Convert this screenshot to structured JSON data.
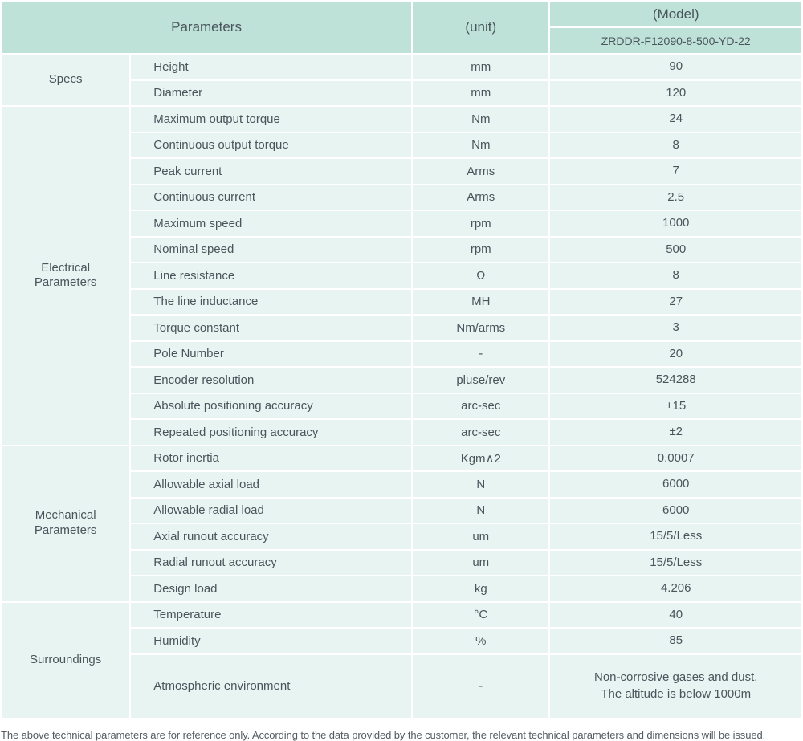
{
  "header": {
    "parameters_label": "Parameters",
    "unit_label": "(unit)",
    "model_label": "(Model)",
    "model_number": "ZRDDR-F12090-8-500-YD-22"
  },
  "groups": [
    {
      "name": "Specs",
      "rows": [
        {
          "label": "Height",
          "unit": "mm",
          "value": "90"
        },
        {
          "label": "Diameter",
          "unit": "mm",
          "value": "120"
        }
      ]
    },
    {
      "name": "Electrical Parameters",
      "rows": [
        {
          "label": "Maximum output torque",
          "unit": "Nm",
          "value": "24"
        },
        {
          "label": "Continuous output torque",
          "unit": "Nm",
          "value": "8"
        },
        {
          "label": "Peak current",
          "unit": "Arms",
          "value": "7"
        },
        {
          "label": "Continuous current",
          "unit": "Arms",
          "value": "2.5"
        },
        {
          "label": "Maximum speed",
          "unit": "rpm",
          "value": "1000"
        },
        {
          "label": "Nominal speed",
          "unit": "rpm",
          "value": "500"
        },
        {
          "label": "Line resistance",
          "unit": "Ω",
          "value": "8"
        },
        {
          "label": "The line inductance",
          "unit": "MH",
          "value": "27"
        },
        {
          "label": "Torque constant",
          "unit": "Nm/arms",
          "value": "3"
        },
        {
          "label": "Pole Number",
          "unit": "-",
          "value": "20"
        },
        {
          "label": "Encoder resolution",
          "unit": "pluse/rev",
          "value": "524288"
        },
        {
          "label": "Absolute positioning accuracy",
          "unit": "arc-sec",
          "value": "±15"
        },
        {
          "label": "Repeated positioning accuracy",
          "unit": "arc-sec",
          "value": "±2"
        }
      ]
    },
    {
      "name": "Mechanical Parameters",
      "rows": [
        {
          "label": "Rotor inertia",
          "unit": "Kgm∧2",
          "value": "0.0007"
        },
        {
          "label": "Allowable axial load",
          "unit": "N",
          "value": "6000"
        },
        {
          "label": "Allowable radial load",
          "unit": "N",
          "value": "6000"
        },
        {
          "label": "Axial runout accuracy",
          "unit": "um",
          "value": "15/5/Less"
        },
        {
          "label": "Radial runout accuracy",
          "unit": "um",
          "value": "15/5/Less"
        },
        {
          "label": "Design load",
          "unit": "kg",
          "value": "4.206"
        }
      ]
    },
    {
      "name": "Surroundings",
      "rows": [
        {
          "label": "Temperature",
          "unit": "°C",
          "value": "40"
        },
        {
          "label": "Humidity",
          "unit": "%",
          "value": "85"
        },
        {
          "label": "Atmospheric environment",
          "unit": "-",
          "value": "Non-corrosive gases and dust,\nThe altitude is below 1000m",
          "tall": true
        }
      ]
    }
  ],
  "footer": {
    "note": "The above technical parameters are for reference only. According to the data provided by the customer, the relevant technical parameters and dimensions will be issued."
  },
  "colors": {
    "header_bg": "#bee2d8",
    "cell_bg": "#e8f4f1",
    "text": "#4a545c"
  }
}
